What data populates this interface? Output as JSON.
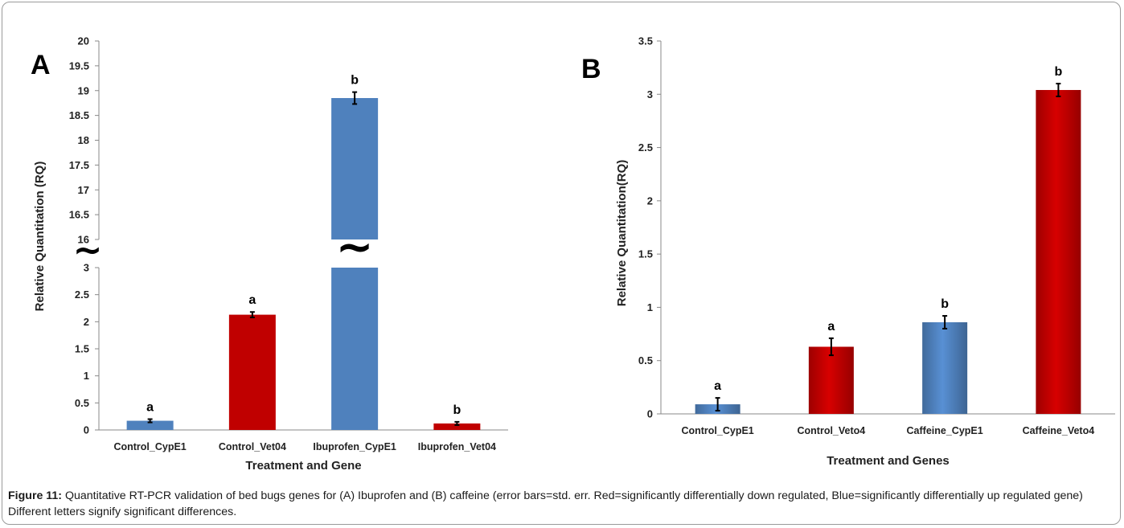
{
  "chart_data": [
    {
      "type": "bar",
      "panel": "A",
      "xlabel": "Treatment and Gene",
      "ylabel": "Relative Quantitation (RQ)",
      "axis_break": "between 3 and 16",
      "ylim_lower": [
        0,
        3
      ],
      "ylim_upper": [
        16,
        20
      ],
      "yticks_lower": [
        "0",
        "0.5",
        "1",
        "1.5",
        "2",
        "2.5",
        "3"
      ],
      "yticks_upper": [
        "16",
        "16.5",
        "17",
        "17.5",
        "18",
        "18.5",
        "19",
        "19.5",
        "20"
      ],
      "categories": [
        "Control_CypE1",
        "Control_Vet04",
        "Ibuprofen_CypE1",
        "Ibuprofen_Vet04"
      ],
      "values": [
        0.17,
        2.13,
        18.85,
        0.12
      ],
      "errors": [
        0.03,
        0.05,
        0.12,
        0.03
      ],
      "significance": [
        "a",
        "a",
        "b",
        "b"
      ],
      "colors": [
        "#4f81bd",
        "#c00000",
        "#4f81bd",
        "#c00000"
      ],
      "break_symbol": "~"
    },
    {
      "type": "bar",
      "panel": "B",
      "xlabel": "Treatment and Genes",
      "ylabel": "Relative Quantitation(RQ)",
      "ylim": [
        0,
        3.5
      ],
      "yticks": [
        "0",
        "0.5",
        "1",
        "1.5",
        "2",
        "2.5",
        "3",
        "3.5"
      ],
      "categories": [
        "Control_CypE1",
        "Control_Veto4",
        "Caffeine_CypE1",
        "Caffeine_Veto4"
      ],
      "values": [
        0.09,
        0.63,
        0.86,
        3.04
      ],
      "errors": [
        0.06,
        0.08,
        0.06,
        0.06
      ],
      "significance": [
        "a",
        "a",
        "b",
        "b"
      ],
      "colors": [
        "#4f81bd",
        "#c00000",
        "#4f81bd",
        "#c00000"
      ]
    }
  ],
  "caption": {
    "label": "Figure 11:",
    "text": " Quantitative RT-PCR validation of bed bugs genes for (A) Ibuprofen and (B) caffeine (error bars=std. err. Red=significantly differentially down regulated, Blue=significantly differentially up regulated gene) Different letters signify significant differences."
  }
}
